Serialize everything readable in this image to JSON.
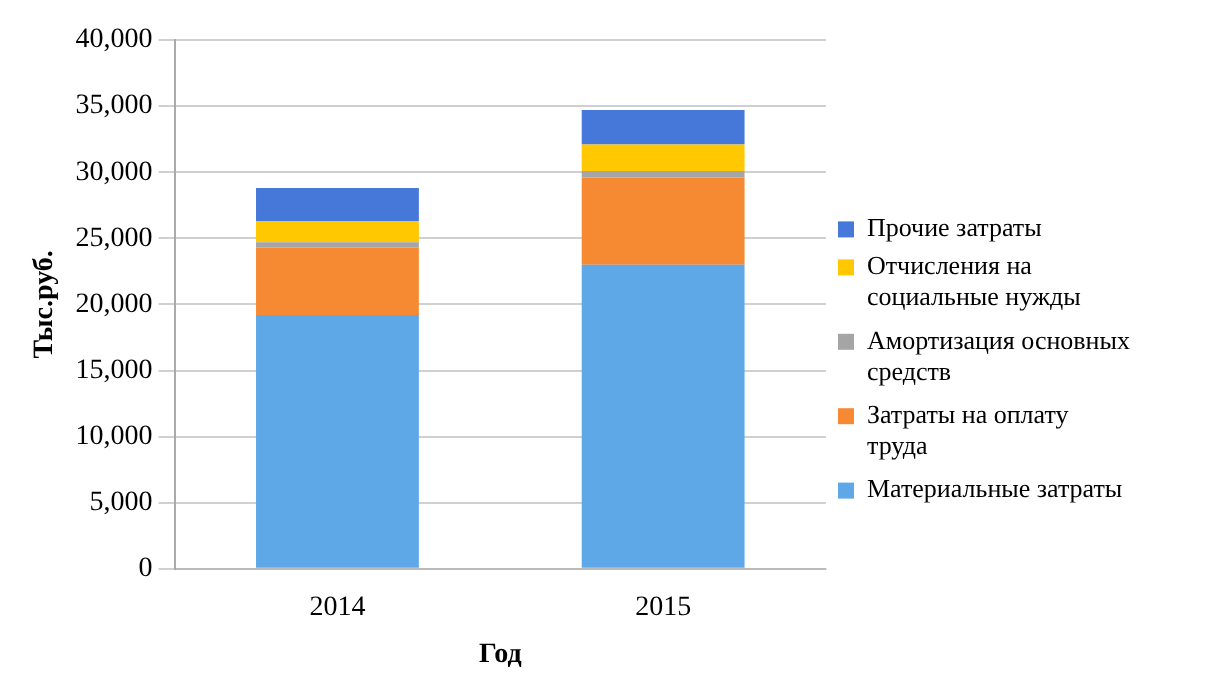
{
  "chart_data": {
    "type": "bar",
    "stacked": true,
    "xlabel": "Год",
    "ylabel": "Тыс.руб.",
    "categories": [
      "2014",
      "2015"
    ],
    "series": [
      {
        "name": "Материальные затраты",
        "color": "#5fa8e8",
        "values": [
          19200,
          23000
        ]
      },
      {
        "name": "Затраты на оплату труда",
        "color": "#f58a33",
        "values": [
          5100,
          6600
        ]
      },
      {
        "name": "Амортизация основных средств",
        "color": "#a5a5a5",
        "values": [
          400,
          500
        ]
      },
      {
        "name": "Отчисления на социальные нужды",
        "color": "#ffc800",
        "values": [
          1600,
          2000
        ]
      },
      {
        "name": "Прочие затраты",
        "color": "#4578d8",
        "values": [
          2500,
          2600
        ]
      }
    ],
    "ylim": [
      0,
      40000
    ],
    "yticks": [
      {
        "value": 0,
        "label": "0"
      },
      {
        "value": 5000,
        "label": "5,000"
      },
      {
        "value": 10000,
        "label": "10,000"
      },
      {
        "value": 15000,
        "label": "15,000"
      },
      {
        "value": 20000,
        "label": "20,000"
      },
      {
        "value": 25000,
        "label": "25,000"
      },
      {
        "value": 30000,
        "label": "30,000"
      },
      {
        "value": 35000,
        "label": "35,000"
      },
      {
        "value": 40000,
        "label": "40,000"
      }
    ],
    "grid": "y",
    "legend": "right"
  }
}
